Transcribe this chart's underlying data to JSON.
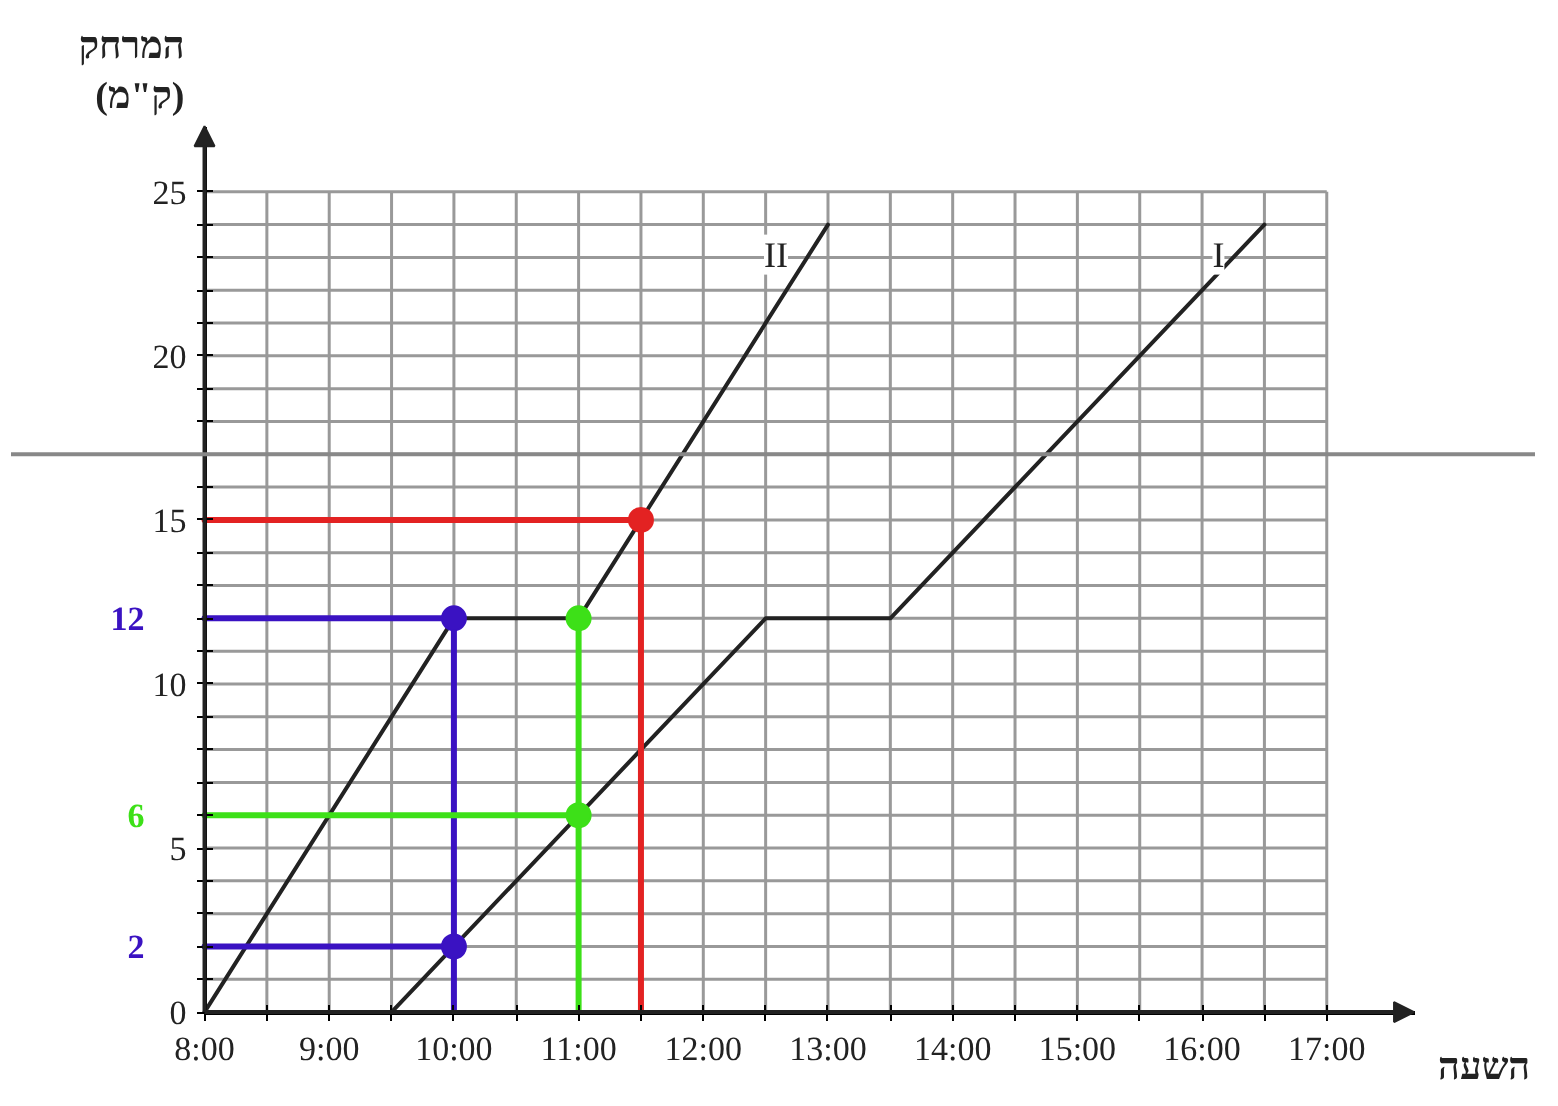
{
  "chart_data": {
    "type": "line",
    "xlabel": "השעה",
    "ylabel": "המרחק\n(ק\"מ)",
    "xlim": [
      8,
      17.7
    ],
    "ylim": [
      0,
      27
    ],
    "xticks": [
      {
        "value": 8,
        "label": "8:00"
      },
      {
        "value": 8.5,
        "label": null
      },
      {
        "value": 9,
        "label": "9:00"
      },
      {
        "value": 9.5,
        "label": null
      },
      {
        "value": 10,
        "label": "10:00"
      },
      {
        "value": 10.5,
        "label": null
      },
      {
        "value": 11,
        "label": "11:00"
      },
      {
        "value": 11.5,
        "label": null
      },
      {
        "value": 12,
        "label": "12:00"
      },
      {
        "value": 12.5,
        "label": null
      },
      {
        "value": 13,
        "label": "13:00"
      },
      {
        "value": 13.5,
        "label": null
      },
      {
        "value": 14,
        "label": "14:00"
      },
      {
        "value": 14.5,
        "label": null
      },
      {
        "value": 15,
        "label": "15:00"
      },
      {
        "value": 15.5,
        "label": null
      },
      {
        "value": 16,
        "label": "16:00"
      },
      {
        "value": 16.5,
        "label": null
      },
      {
        "value": 17,
        "label": "17:00"
      }
    ],
    "yticks": [
      0,
      {
        "value": 1,
        "label": null
      },
      {
        "value": 2,
        "label": null
      },
      {
        "value": 3,
        "label": null
      },
      {
        "value": 4,
        "label": null
      },
      5,
      {
        "value": 6,
        "label": null
      },
      {
        "value": 7,
        "label": null
      },
      {
        "value": 8,
        "label": null
      },
      {
        "value": 9,
        "label": null
      },
      10,
      {
        "value": 11,
        "label": null
      },
      {
        "value": 12,
        "label": null
      },
      {
        "value": 13,
        "label": null
      },
      {
        "value": 14,
        "label": null
      },
      15,
      {
        "value": 16,
        "label": null
      },
      {
        "value": 17,
        "label": null
      },
      {
        "value": 18,
        "label": null
      },
      {
        "value": 19,
        "label": null
      },
      20,
      {
        "value": 21,
        "label": null
      },
      {
        "value": 22,
        "label": null
      },
      {
        "value": 23,
        "label": null
      },
      {
        "value": 24,
        "label": null
      },
      25
    ],
    "grid": true,
    "series": [
      {
        "name": "I",
        "color": "#222222",
        "x": [
          9.5,
          12.5,
          13.5,
          16.5
        ],
        "values": [
          0,
          12,
          12,
          24
        ]
      },
      {
        "name": "II",
        "color": "#222222",
        "x": [
          8,
          10,
          11,
          13
        ],
        "values": [
          0,
          12,
          12,
          24
        ]
      },
      {
        "color": "#3a12c2",
        "x": [
          8,
          10,
          10
        ],
        "values": [
          12,
          12,
          0
        ]
      },
      {
        "color": "#3de018",
        "x": [
          8,
          11
        ],
        "values": [
          6,
          6
        ]
      },
      {
        "color": "#3a12c2",
        "x": [
          8,
          10
        ],
        "values": [
          2,
          2
        ]
      },
      {
        "color": "#e32222",
        "x": [
          8,
          11.5,
          11.5
        ],
        "values": [
          15,
          15,
          0
        ]
      },
      {
        "color": "#3de018",
        "x": [
          11,
          11
        ],
        "values": [
          0,
          12
        ]
      },
      {
        "type": "scatter",
        "color": "#e32222",
        "x": [
          11.5
        ],
        "values": [
          15
        ]
      },
      {
        "type": "scatter",
        "color": "#3a12c2",
        "x": [
          10,
          10
        ],
        "values": [
          12,
          2
        ]
      },
      {
        "type": "scatter",
        "color": "#3de018",
        "x": [
          11,
          11
        ],
        "values": [
          12,
          6
        ]
      }
    ],
    "ref_lines": [
      {
        "axis": "y",
        "value": 17,
        "color": "#888888"
      }
    ],
    "annotations": [
      "12",
      "6",
      "2"
    ]
  }
}
